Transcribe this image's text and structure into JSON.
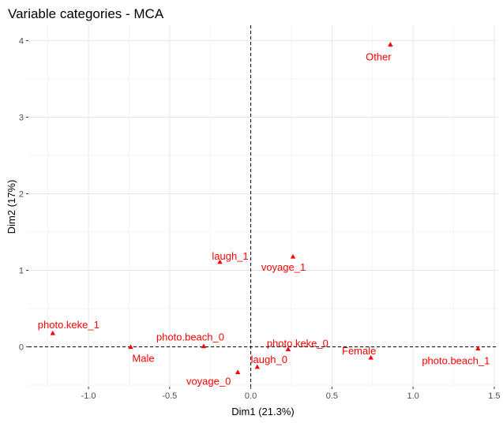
{
  "chart_data": {
    "type": "scatter",
    "title": "Variable categories - MCA",
    "xlabel": "Dim1 (21.3%)",
    "ylabel": "Dim2 (17%)",
    "xlim": [
      -1.37,
      1.52
    ],
    "ylim": [
      -0.52,
      4.2
    ],
    "x_ticks": [
      -1.0,
      -0.5,
      0.0,
      0.5,
      1.0,
      1.5
    ],
    "x_tick_labels": [
      "-1.0",
      "-0.5",
      "0.0",
      "0.5",
      "1.0",
      "1.5"
    ],
    "y_ticks": [
      0,
      1,
      2,
      3,
      4
    ],
    "y_tick_labels": [
      "0",
      "1",
      "2",
      "3",
      "4"
    ],
    "grid": true,
    "reference_lines": {
      "x": 0,
      "y": 0,
      "style": "dashed"
    },
    "point_color": "#ff0000",
    "points": [
      {
        "label": "Other",
        "x": 0.86,
        "y": 3.95
      },
      {
        "label": "laugh_1",
        "x": -0.19,
        "y": 1.11
      },
      {
        "label": "voyage_1",
        "x": 0.26,
        "y": 1.18
      },
      {
        "label": "photo.keke_1",
        "x": -1.22,
        "y": 0.18
      },
      {
        "label": "Male",
        "x": -0.74,
        "y": 0.0
      },
      {
        "label": "photo.beach_0",
        "x": -0.29,
        "y": 0.01
      },
      {
        "label": "photo.keke_0",
        "x": 0.23,
        "y": -0.03
      },
      {
        "label": "Female",
        "x": 0.74,
        "y": -0.14
      },
      {
        "label": "photo.beach_1",
        "x": 1.4,
        "y": -0.02
      },
      {
        "label": "laugh_0",
        "x": 0.04,
        "y": -0.26
      },
      {
        "label": "voyage_0",
        "x": -0.08,
        "y": -0.33
      }
    ]
  }
}
